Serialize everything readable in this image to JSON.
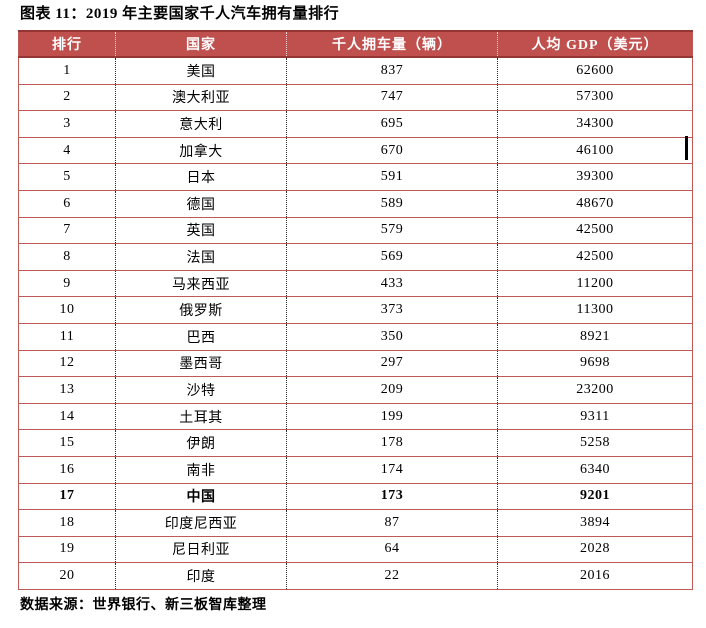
{
  "title": "图表 11：2019 年主要国家千人汽车拥有量排行",
  "source_note": "数据来源：世界银行、新三板智库整理",
  "colors": {
    "header_bg": "#c0504d",
    "header_border_dark": "#943634",
    "row_border_red": "#bd5a57",
    "header_text": "#ffffff",
    "body_text": "#000000"
  },
  "table": {
    "columns": [
      "排行",
      "国家",
      "千人拥车量（辆）",
      "人均 GDP（美元）"
    ],
    "rows": [
      {
        "rank": "1",
        "country": "美国",
        "cars": "837",
        "gdp": "62600",
        "bold": false
      },
      {
        "rank": "2",
        "country": "澳大利亚",
        "cars": "747",
        "gdp": "57300",
        "bold": false
      },
      {
        "rank": "3",
        "country": "意大利",
        "cars": "695",
        "gdp": "34300",
        "bold": false
      },
      {
        "rank": "4",
        "country": "加拿大",
        "cars": "670",
        "gdp": "46100",
        "bold": false
      },
      {
        "rank": "5",
        "country": "日本",
        "cars": "591",
        "gdp": "39300",
        "bold": false
      },
      {
        "rank": "6",
        "country": "德国",
        "cars": "589",
        "gdp": "48670",
        "bold": false
      },
      {
        "rank": "7",
        "country": "英国",
        "cars": "579",
        "gdp": "42500",
        "bold": false
      },
      {
        "rank": "8",
        "country": "法国",
        "cars": "569",
        "gdp": "42500",
        "bold": false
      },
      {
        "rank": "9",
        "country": "马来西亚",
        "cars": "433",
        "gdp": "11200",
        "bold": false
      },
      {
        "rank": "10",
        "country": "俄罗斯",
        "cars": "373",
        "gdp": "11300",
        "bold": false
      },
      {
        "rank": "11",
        "country": "巴西",
        "cars": "350",
        "gdp": "8921",
        "bold": false
      },
      {
        "rank": "12",
        "country": "墨西哥",
        "cars": "297",
        "gdp": "9698",
        "bold": false
      },
      {
        "rank": "13",
        "country": "沙特",
        "cars": "209",
        "gdp": "23200",
        "bold": false
      },
      {
        "rank": "14",
        "country": "土耳其",
        "cars": "199",
        "gdp": "9311",
        "bold": false
      },
      {
        "rank": "15",
        "country": "伊朗",
        "cars": "178",
        "gdp": "5258",
        "bold": false
      },
      {
        "rank": "16",
        "country": "南非",
        "cars": "174",
        "gdp": "6340",
        "bold": false
      },
      {
        "rank": "17",
        "country": "中国",
        "cars": "173",
        "gdp": "9201",
        "bold": true
      },
      {
        "rank": "18",
        "country": "印度尼西亚",
        "cars": "87",
        "gdp": "3894",
        "bold": false
      },
      {
        "rank": "19",
        "country": "尼日利亚",
        "cars": "64",
        "gdp": "2028",
        "bold": false
      },
      {
        "rank": "20",
        "country": "印度",
        "cars": "22",
        "gdp": "2016",
        "bold": false
      }
    ]
  }
}
